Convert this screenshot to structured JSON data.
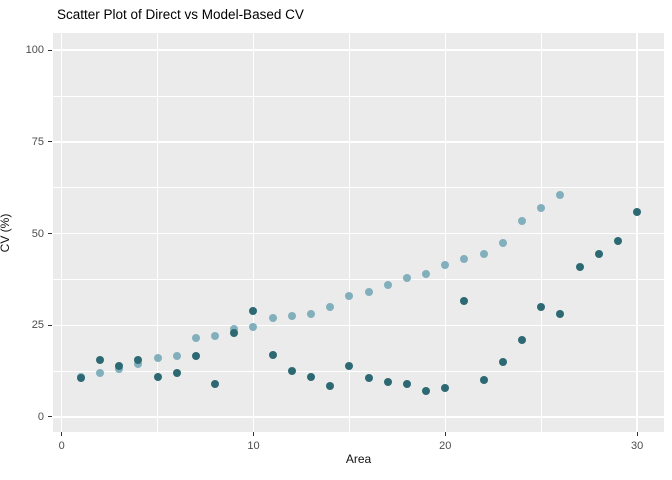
{
  "chart_data": {
    "type": "scatter",
    "title": "Scatter Plot of Direct vs Model-Based CV",
    "xlabel": "Area",
    "ylabel": "CV (%)",
    "x_ticks": [
      0,
      10,
      20,
      30
    ],
    "y_ticks": [
      0,
      25,
      50,
      75,
      100
    ],
    "x_minor_gridlines": [
      5,
      15,
      25
    ],
    "y_minor_gridlines": [
      12.5,
      37.5,
      62.5,
      87.5
    ],
    "xlim": [
      -0.45,
      31.4
    ],
    "ylim": [
      -4.1,
      104.7
    ],
    "grid": "on",
    "legend_position": "none",
    "panel_background": "#EBEBEB",
    "gridline_color": "#FFFFFF",
    "tick_color": "#333333",
    "tick_label_color": "#4D4D4D",
    "series": [
      {
        "name": "model_based",
        "color": "#82AFBC",
        "x": [
          1,
          2,
          3,
          4,
          5,
          6,
          7,
          8,
          9,
          10,
          11,
          12,
          13,
          14,
          15,
          16,
          17,
          18,
          19,
          20,
          21,
          22,
          23,
          24,
          25,
          26
        ],
        "y": [
          11,
          12,
          13,
          14.5,
          16,
          16.5,
          21.5,
          22,
          24,
          24.5,
          27,
          27.5,
          28,
          30,
          33,
          34,
          36,
          38,
          39,
          41.5,
          43,
          44.5,
          47.5,
          53.5,
          57,
          60.5
        ]
      },
      {
        "name": "direct",
        "color": "#2D6973",
        "x": [
          1,
          2,
          3,
          4,
          5,
          6,
          7,
          8,
          9,
          10,
          11,
          12,
          13,
          14,
          15,
          16,
          17,
          18,
          19,
          20,
          21,
          22,
          23,
          24,
          25,
          26,
          27,
          28,
          29,
          30
        ],
        "y": [
          10.5,
          15.5,
          14,
          15.5,
          11,
          12,
          16.5,
          9,
          23,
          29,
          17,
          12.5,
          11,
          8.5,
          14,
          10.5,
          9.5,
          9,
          7,
          8,
          31.5,
          10,
          15,
          21,
          30,
          28,
          41,
          44.5,
          48,
          56
        ]
      }
    ]
  }
}
